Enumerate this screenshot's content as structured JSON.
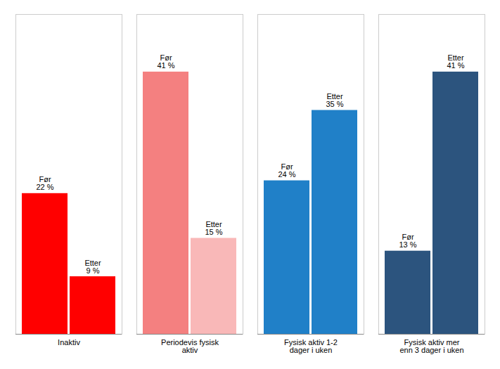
{
  "chart_data": {
    "type": "bar",
    "categories": [
      "Inaktiv",
      "Periodevis fysisk\naktiv",
      "Fysisk aktiv 1-2\ndager i uken",
      "Fysisk aktiv mer\nenn 3 dager i uken"
    ],
    "series": [
      {
        "values": [
          22,
          41,
          24,
          13
        ],
        "value_labels": [
          "Før\n22 %",
          "Før\n41 %",
          "Før\n24 %",
          "Før\n13 %"
        ],
        "colors": [
          "#ff0000",
          "#f48080",
          "#2080c8",
          "#2c547e"
        ]
      },
      {
        "values": [
          9,
          15,
          35,
          41
        ],
        "value_labels": [
          "Etter\n9 %",
          "Etter\n15 %",
          "Etter\n35 %",
          "Etter\n41 %"
        ],
        "colors": [
          "#ff0000",
          "#f9b8b8",
          "#2080c8",
          "#2c547e"
        ]
      }
    ],
    "ylim": [
      0,
      50
    ],
    "grid": false,
    "data_labels": true,
    "tick_labels": "x"
  }
}
